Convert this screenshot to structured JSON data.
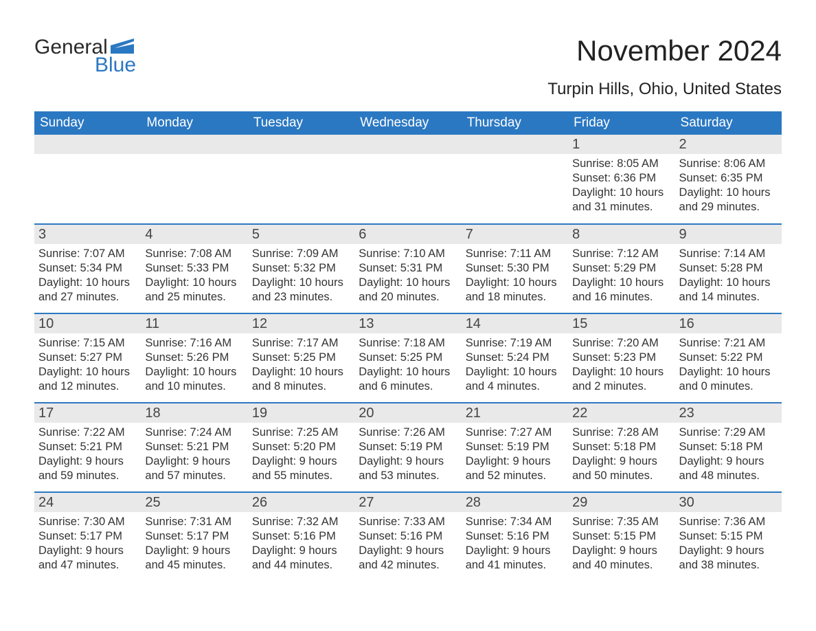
{
  "logo": {
    "text1": "General",
    "text2": "Blue"
  },
  "title": "November 2024",
  "subtitle": "Turpin Hills, Ohio, United States",
  "style": {
    "header_bg": "#2b78c2",
    "header_fg": "#ffffff",
    "row_separator": "#2b78c2",
    "daynum_bg": "#e9e9e9",
    "body_bg": "#ffffff",
    "text_color": "#333333",
    "title_fontsize": 42,
    "subtitle_fontsize": 24,
    "header_fontsize": 19,
    "cell_fontsize": 16.5,
    "columns": 7,
    "rows": 5
  },
  "weekdays": [
    "Sunday",
    "Monday",
    "Tuesday",
    "Wednesday",
    "Thursday",
    "Friday",
    "Saturday"
  ],
  "weeks": [
    [
      null,
      null,
      null,
      null,
      null,
      {
        "n": "1",
        "sunrise": "8:05 AM",
        "sunset": "6:36 PM",
        "daylight": "10 hours and 31 minutes."
      },
      {
        "n": "2",
        "sunrise": "8:06 AM",
        "sunset": "6:35 PM",
        "daylight": "10 hours and 29 minutes."
      }
    ],
    [
      {
        "n": "3",
        "sunrise": "7:07 AM",
        "sunset": "5:34 PM",
        "daylight": "10 hours and 27 minutes."
      },
      {
        "n": "4",
        "sunrise": "7:08 AM",
        "sunset": "5:33 PM",
        "daylight": "10 hours and 25 minutes."
      },
      {
        "n": "5",
        "sunrise": "7:09 AM",
        "sunset": "5:32 PM",
        "daylight": "10 hours and 23 minutes."
      },
      {
        "n": "6",
        "sunrise": "7:10 AM",
        "sunset": "5:31 PM",
        "daylight": "10 hours and 20 minutes."
      },
      {
        "n": "7",
        "sunrise": "7:11 AM",
        "sunset": "5:30 PM",
        "daylight": "10 hours and 18 minutes."
      },
      {
        "n": "8",
        "sunrise": "7:12 AM",
        "sunset": "5:29 PM",
        "daylight": "10 hours and 16 minutes."
      },
      {
        "n": "9",
        "sunrise": "7:14 AM",
        "sunset": "5:28 PM",
        "daylight": "10 hours and 14 minutes."
      }
    ],
    [
      {
        "n": "10",
        "sunrise": "7:15 AM",
        "sunset": "5:27 PM",
        "daylight": "10 hours and 12 minutes."
      },
      {
        "n": "11",
        "sunrise": "7:16 AM",
        "sunset": "5:26 PM",
        "daylight": "10 hours and 10 minutes."
      },
      {
        "n": "12",
        "sunrise": "7:17 AM",
        "sunset": "5:25 PM",
        "daylight": "10 hours and 8 minutes."
      },
      {
        "n": "13",
        "sunrise": "7:18 AM",
        "sunset": "5:25 PM",
        "daylight": "10 hours and 6 minutes."
      },
      {
        "n": "14",
        "sunrise": "7:19 AM",
        "sunset": "5:24 PM",
        "daylight": "10 hours and 4 minutes."
      },
      {
        "n": "15",
        "sunrise": "7:20 AM",
        "sunset": "5:23 PM",
        "daylight": "10 hours and 2 minutes."
      },
      {
        "n": "16",
        "sunrise": "7:21 AM",
        "sunset": "5:22 PM",
        "daylight": "10 hours and 0 minutes."
      }
    ],
    [
      {
        "n": "17",
        "sunrise": "7:22 AM",
        "sunset": "5:21 PM",
        "daylight": "9 hours and 59 minutes."
      },
      {
        "n": "18",
        "sunrise": "7:24 AM",
        "sunset": "5:21 PM",
        "daylight": "9 hours and 57 minutes."
      },
      {
        "n": "19",
        "sunrise": "7:25 AM",
        "sunset": "5:20 PM",
        "daylight": "9 hours and 55 minutes."
      },
      {
        "n": "20",
        "sunrise": "7:26 AM",
        "sunset": "5:19 PM",
        "daylight": "9 hours and 53 minutes."
      },
      {
        "n": "21",
        "sunrise": "7:27 AM",
        "sunset": "5:19 PM",
        "daylight": "9 hours and 52 minutes."
      },
      {
        "n": "22",
        "sunrise": "7:28 AM",
        "sunset": "5:18 PM",
        "daylight": "9 hours and 50 minutes."
      },
      {
        "n": "23",
        "sunrise": "7:29 AM",
        "sunset": "5:18 PM",
        "daylight": "9 hours and 48 minutes."
      }
    ],
    [
      {
        "n": "24",
        "sunrise": "7:30 AM",
        "sunset": "5:17 PM",
        "daylight": "9 hours and 47 minutes."
      },
      {
        "n": "25",
        "sunrise": "7:31 AM",
        "sunset": "5:17 PM",
        "daylight": "9 hours and 45 minutes."
      },
      {
        "n": "26",
        "sunrise": "7:32 AM",
        "sunset": "5:16 PM",
        "daylight": "9 hours and 44 minutes."
      },
      {
        "n": "27",
        "sunrise": "7:33 AM",
        "sunset": "5:16 PM",
        "daylight": "9 hours and 42 minutes."
      },
      {
        "n": "28",
        "sunrise": "7:34 AM",
        "sunset": "5:16 PM",
        "daylight": "9 hours and 41 minutes."
      },
      {
        "n": "29",
        "sunrise": "7:35 AM",
        "sunset": "5:15 PM",
        "daylight": "9 hours and 40 minutes."
      },
      {
        "n": "30",
        "sunrise": "7:36 AM",
        "sunset": "5:15 PM",
        "daylight": "9 hours and 38 minutes."
      }
    ]
  ],
  "labels": {
    "sunrise": "Sunrise: ",
    "sunset": "Sunset: ",
    "daylight": "Daylight: "
  }
}
